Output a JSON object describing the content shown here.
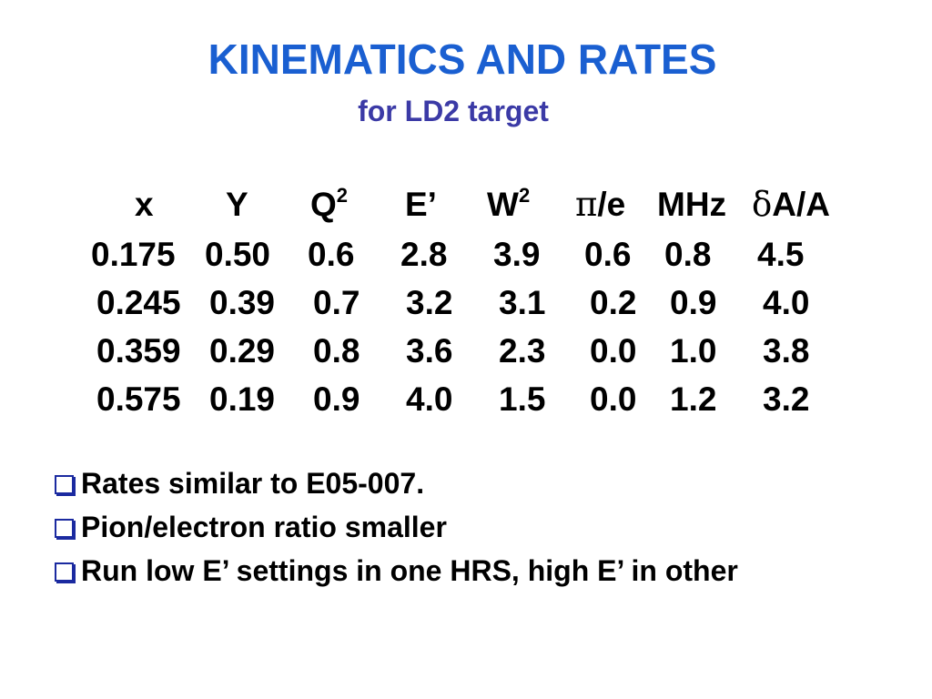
{
  "slide": {
    "title": "KINEMATICS AND RATES",
    "subtitle": "for LD2 target",
    "colors": {
      "title": "#1a5fd1",
      "subtitle": "#3b3aa6",
      "bullet_box": "#1b2aa0",
      "text": "#000000"
    }
  },
  "table": {
    "headers": {
      "x": "x",
      "y": "Y",
      "q2_base": "Q",
      "q2_sup": "2",
      "e_prime": "E’",
      "w2_base": "W",
      "w2_sup": "2",
      "pi_symbol": "π",
      "pi_rest": "/e",
      "mhz": "MHz",
      "delta_symbol": "δ",
      "delta_rest": "A/A"
    },
    "rows": [
      [
        "0.175",
        "0.50",
        "0.6",
        "2.8",
        "3.9",
        "0.6",
        "0.8",
        "4.5"
      ],
      [
        "0.245",
        "0.39",
        "0.7",
        "3.2",
        "3.1",
        "0.2",
        "0.9",
        "4.0"
      ],
      [
        "0.359",
        "0.29",
        "0.8",
        "3.6",
        "2.3",
        "0.0",
        "1.0",
        "3.8"
      ],
      [
        "0.575",
        "0.19",
        "0.9",
        "4.0",
        "1.5",
        "0.0",
        "1.2",
        "3.2"
      ]
    ]
  },
  "bullets": [
    {
      "icon": "checkbox-bullet-icon",
      "text": "Rates similar to E05-007."
    },
    {
      "icon": "checkbox-bullet-icon",
      "text": "Pion/electron ratio smaller"
    },
    {
      "icon": "checkbox-bullet-icon",
      "text": "Run low E’ settings in one HRS, high E’ in other"
    }
  ]
}
